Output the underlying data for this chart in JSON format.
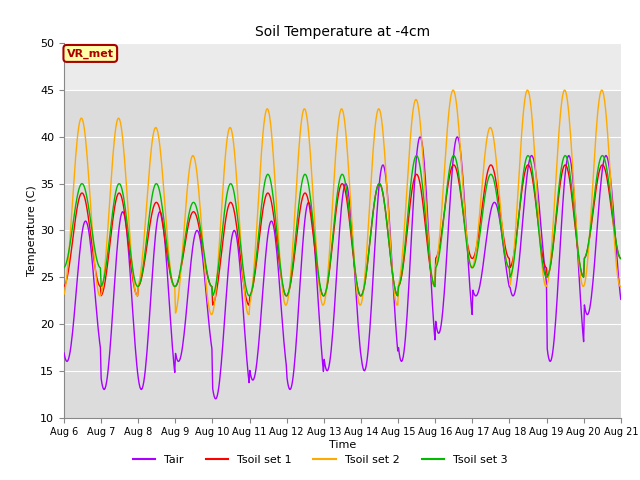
{
  "title": "Soil Temperature at -4cm",
  "xlabel": "Time",
  "ylabel": "Temperature (C)",
  "ylim": [
    10,
    50
  ],
  "yticks": [
    10,
    15,
    20,
    25,
    30,
    35,
    40,
    45,
    50
  ],
  "n_days": 15,
  "x_tick_labels": [
    "Aug 6",
    "Aug 7",
    "Aug 8",
    "Aug 9",
    "Aug 10",
    "Aug 11",
    "Aug 12",
    "Aug 13",
    "Aug 14",
    "Aug 15",
    "Aug 16",
    "Aug 17",
    "Aug 18",
    "Aug 19",
    "Aug 20",
    "Aug 21"
  ],
  "colors": {
    "Tair": "#aa00ff",
    "Tsoil1": "#ff0000",
    "Tsoil2": "#ffaa00",
    "Tsoil3": "#00bb00"
  },
  "legend_labels": [
    "Tair",
    "Tsoil set 1",
    "Tsoil set 2",
    "Tsoil set 3"
  ],
  "bg_color_lower": "#dcdcdc",
  "bg_color_upper": "#ebebeb",
  "annotation_text": "VR_met",
  "annotation_box_color": "#ffffaa",
  "annotation_border_color": "#aa0000",
  "tair_mins": [
    16,
    13,
    13,
    16,
    12,
    14,
    13,
    15,
    15,
    16,
    19,
    23,
    23,
    16,
    21
  ],
  "tair_maxs": [
    31,
    32,
    32,
    30,
    30,
    31,
    33,
    35,
    37,
    40,
    40,
    33,
    38,
    38,
    38
  ],
  "ts1_mins": [
    24,
    23,
    24,
    24,
    22,
    23,
    23,
    23,
    23,
    24,
    27,
    27,
    26,
    25,
    27
  ],
  "ts1_maxs": [
    34,
    34,
    33,
    32,
    33,
    34,
    34,
    35,
    35,
    36,
    37,
    37,
    37,
    37,
    37
  ],
  "ts2_mins": [
    23,
    23,
    24,
    21,
    21,
    22,
    22,
    22,
    22,
    24,
    26,
    26,
    24,
    24,
    24
  ],
  "ts2_maxs": [
    42,
    42,
    41,
    38,
    41,
    43,
    43,
    43,
    43,
    44,
    45,
    41,
    45,
    45,
    45
  ],
  "ts3_mins": [
    26,
    24,
    24,
    24,
    23,
    23,
    23,
    23,
    23,
    24,
    26,
    26,
    25,
    25,
    27
  ],
  "ts3_maxs": [
    35,
    35,
    35,
    33,
    35,
    36,
    36,
    36,
    35,
    38,
    38,
    36,
    38,
    38,
    38
  ],
  "tair_phase": -0.5,
  "ts1_phase": 0.1,
  "ts2_phase": 0.2,
  "ts3_phase": 0.1,
  "pts_per_day": 48
}
